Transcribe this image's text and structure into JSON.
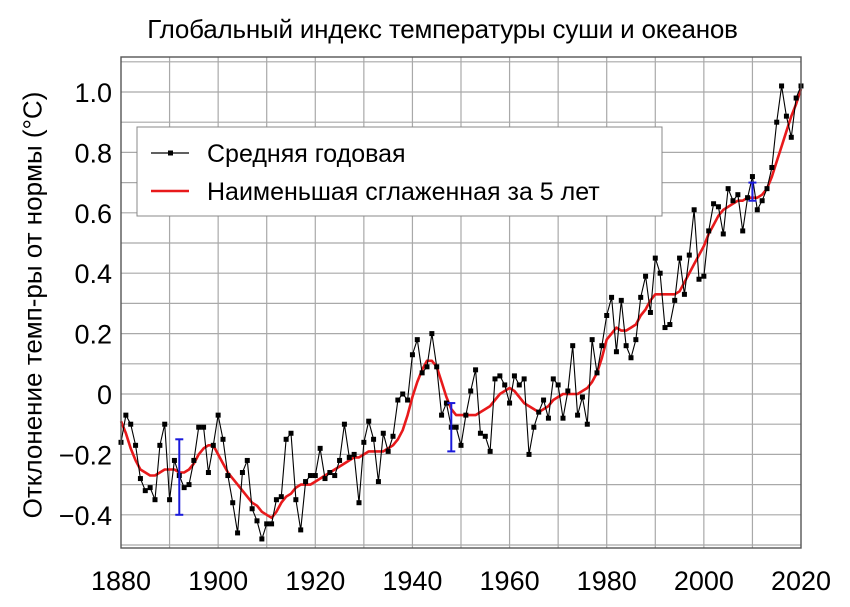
{
  "chart_data": {
    "type": "line",
    "title": "Глобальный индекс температуры суши и океанов",
    "xlabel": "",
    "ylabel": "Отклонение темп-ры от нормы (°C)",
    "xlim": [
      1880,
      2020
    ],
    "ylim": [
      -0.51,
      1.11
    ],
    "xticks": [
      1880,
      1900,
      1920,
      1940,
      1960,
      1980,
      2000,
      2020
    ],
    "xtick_labels": [
      "1880",
      "1900",
      "1920",
      "1940",
      "1960",
      "1980",
      "2000",
      "2020"
    ],
    "yticks": [
      -0.4,
      -0.2,
      0,
      0.2,
      0.4,
      0.6,
      0.8,
      1.0
    ],
    "ytick_labels": [
      "−0.4",
      "−0.2",
      "0",
      "0.2",
      "0.4",
      "0.6",
      "0.8",
      "1.0"
    ],
    "grid": true,
    "legend_position": "upper left",
    "legend": [
      "Средняя годовая",
      "Наименьшая сглаженная за 5 лет"
    ],
    "colors": {
      "annual": "#000000",
      "smoothed": "#e8191b",
      "error_bar": "#1a1adb",
      "grid": "#a9a9a9"
    },
    "x": [
      1880,
      1881,
      1882,
      1883,
      1884,
      1885,
      1886,
      1887,
      1888,
      1889,
      1890,
      1891,
      1892,
      1893,
      1894,
      1895,
      1896,
      1897,
      1898,
      1899,
      1900,
      1901,
      1902,
      1903,
      1904,
      1905,
      1906,
      1907,
      1908,
      1909,
      1910,
      1911,
      1912,
      1913,
      1914,
      1915,
      1916,
      1917,
      1918,
      1919,
      1920,
      1921,
      1922,
      1923,
      1924,
      1925,
      1926,
      1927,
      1928,
      1929,
      1930,
      1931,
      1932,
      1933,
      1934,
      1935,
      1936,
      1937,
      1938,
      1939,
      1940,
      1941,
      1942,
      1943,
      1944,
      1945,
      1946,
      1947,
      1948,
      1949,
      1950,
      1951,
      1952,
      1953,
      1954,
      1955,
      1956,
      1957,
      1958,
      1959,
      1960,
      1961,
      1962,
      1963,
      1964,
      1965,
      1966,
      1967,
      1968,
      1969,
      1970,
      1971,
      1972,
      1973,
      1974,
      1975,
      1976,
      1977,
      1978,
      1979,
      1980,
      1981,
      1982,
      1983,
      1984,
      1985,
      1986,
      1987,
      1988,
      1989,
      1990,
      1991,
      1992,
      1993,
      1994,
      1995,
      1996,
      1997,
      1998,
      1999,
      2000,
      2001,
      2002,
      2003,
      2004,
      2005,
      2006,
      2007,
      2008,
      2009,
      2010,
      2011,
      2012,
      2013,
      2014,
      2015,
      2016,
      2017,
      2018,
      2019,
      2020
    ],
    "series": [
      {
        "name": "Средняя годовая",
        "values": [
          -0.16,
          -0.07,
          -0.1,
          -0.17,
          -0.28,
          -0.32,
          -0.31,
          -0.35,
          -0.17,
          -0.1,
          -0.35,
          -0.22,
          -0.27,
          -0.31,
          -0.3,
          -0.22,
          -0.11,
          -0.11,
          -0.26,
          -0.17,
          -0.07,
          -0.15,
          -0.27,
          -0.36,
          -0.46,
          -0.26,
          -0.22,
          -0.38,
          -0.42,
          -0.48,
          -0.43,
          -0.43,
          -0.35,
          -0.34,
          -0.15,
          -0.13,
          -0.35,
          -0.45,
          -0.29,
          -0.27,
          -0.27,
          -0.18,
          -0.28,
          -0.26,
          -0.27,
          -0.22,
          -0.1,
          -0.21,
          -0.2,
          -0.36,
          -0.16,
          -0.09,
          -0.15,
          -0.29,
          -0.13,
          -0.19,
          -0.14,
          -0.02,
          -0.0,
          -0.02,
          0.13,
          0.18,
          0.07,
          0.09,
          0.2,
          0.09,
          -0.07,
          -0.03,
          -0.11,
          -0.11,
          -0.17,
          -0.07,
          0.01,
          0.08,
          -0.13,
          -0.14,
          -0.19,
          0.05,
          0.06,
          0.03,
          -0.03,
          0.06,
          0.03,
          0.05,
          -0.2,
          -0.11,
          -0.06,
          -0.02,
          -0.08,
          0.05,
          0.03,
          -0.08,
          0.01,
          0.16,
          -0.07,
          -0.01,
          -0.1,
          0.18,
          0.07,
          0.16,
          0.26,
          0.32,
          0.14,
          0.31,
          0.16,
          0.12,
          0.18,
          0.32,
          0.39,
          0.27,
          0.45,
          0.4,
          0.22,
          0.23,
          0.31,
          0.45,
          0.33,
          0.46,
          0.61,
          0.38,
          0.39,
          0.54,
          0.63,
          0.62,
          0.53,
          0.68,
          0.64,
          0.66,
          0.54,
          0.65,
          0.72,
          0.61,
          0.64,
          0.68,
          0.75,
          0.9,
          1.02,
          0.92,
          0.85,
          0.98,
          1.02
        ]
      },
      {
        "name": "Наименьшая сглаженная за 5 лет",
        "values": [
          -0.09,
          -0.13,
          -0.18,
          -0.22,
          -0.25,
          -0.26,
          -0.27,
          -0.27,
          -0.26,
          -0.25,
          -0.25,
          -0.25,
          -0.26,
          -0.26,
          -0.25,
          -0.23,
          -0.2,
          -0.18,
          -0.17,
          -0.17,
          -0.2,
          -0.23,
          -0.26,
          -0.28,
          -0.3,
          -0.32,
          -0.34,
          -0.36,
          -0.37,
          -0.39,
          -0.4,
          -0.41,
          -0.39,
          -0.36,
          -0.34,
          -0.33,
          -0.31,
          -0.3,
          -0.3,
          -0.3,
          -0.29,
          -0.28,
          -0.27,
          -0.26,
          -0.25,
          -0.24,
          -0.23,
          -0.22,
          -0.21,
          -0.21,
          -0.2,
          -0.19,
          -0.19,
          -0.19,
          -0.19,
          -0.18,
          -0.17,
          -0.15,
          -0.12,
          -0.07,
          -0.01,
          0.04,
          0.08,
          0.11,
          0.11,
          0.09,
          0.04,
          -0.01,
          -0.05,
          -0.07,
          -0.07,
          -0.07,
          -0.07,
          -0.07,
          -0.06,
          -0.05,
          -0.04,
          -0.02,
          0.0,
          0.01,
          0.02,
          0.01,
          -0.01,
          -0.03,
          -0.04,
          -0.05,
          -0.06,
          -0.05,
          -0.04,
          -0.02,
          -0.01,
          0.0,
          0.0,
          0.0,
          0.0,
          0.01,
          0.02,
          0.04,
          0.07,
          0.12,
          0.18,
          0.2,
          0.22,
          0.21,
          0.21,
          0.22,
          0.23,
          0.26,
          0.28,
          0.31,
          0.33,
          0.33,
          0.33,
          0.33,
          0.33,
          0.34,
          0.37,
          0.4,
          0.43,
          0.46,
          0.49,
          0.53,
          0.56,
          0.59,
          0.61,
          0.62,
          0.63,
          0.64,
          0.64,
          0.65,
          0.65,
          0.65,
          0.66,
          0.68,
          0.72,
          0.77,
          0.82,
          0.87,
          0.92,
          0.96,
          1.01
        ]
      }
    ],
    "error_bars": [
      {
        "x": 1892,
        "center": -0.27,
        "low": -0.4,
        "high": -0.15
      },
      {
        "x": 1948,
        "center": -0.11,
        "low": -0.19,
        "high": -0.03
      },
      {
        "x": 2010,
        "center": 0.66,
        "low": 0.64,
        "high": 0.7
      }
    ]
  }
}
